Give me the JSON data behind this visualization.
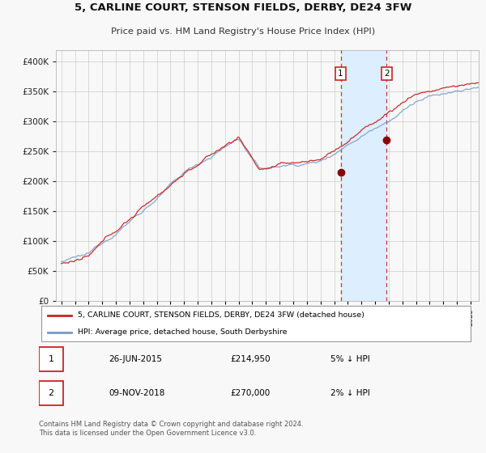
{
  "title": "5, CARLINE COURT, STENSON FIELDS, DERBY, DE24 3FW",
  "subtitle": "Price paid vs. HM Land Registry's House Price Index (HPI)",
  "legend_line1": "5, CARLINE COURT, STENSON FIELDS, DERBY, DE24 3FW (detached house)",
  "legend_line2": "HPI: Average price, detached house, South Derbyshire",
  "footer": "Contains HM Land Registry data © Crown copyright and database right 2024.\nThis data is licensed under the Open Government Licence v3.0.",
  "red_line_color": "#cc2222",
  "blue_line_color": "#7799cc",
  "marker_color": "#880000",
  "shading_color": "#ddeeff",
  "dashed_line_color": "#cc3333",
  "background_color": "#f8f8f8",
  "plot_bg_color": "#f8f8f8",
  "grid_color": "#cccccc",
  "ylim_min": 0,
  "ylim_max": 420000,
  "year_start": 1995,
  "year_end": 2025,
  "transaction1_year": 2015.48,
  "transaction2_year": 2018.85,
  "transaction1_price": 214950,
  "transaction2_price": 270000,
  "transaction1_label": "1",
  "transaction2_label": "2"
}
